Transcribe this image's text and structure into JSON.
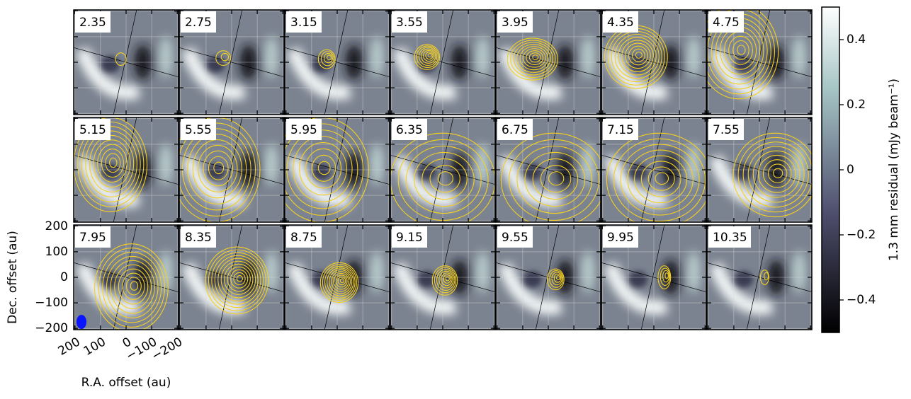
{
  "chart_data": {
    "type": "channel-map",
    "panels": [
      "2.35",
      "2.75",
      "3.15",
      "3.55",
      "3.95",
      "4.35",
      "4.75",
      "5.15",
      "5.55",
      "5.95",
      "6.35",
      "6.75",
      "7.15",
      "7.55",
      "7.95",
      "8.35",
      "8.75",
      "9.15",
      "9.55",
      "9.95",
      "10.35"
    ],
    "xlabel": "R.A. offset (au)",
    "ylabel": "Dec. offset (au)",
    "xlim": [
      205,
      -205
    ],
    "ylim": [
      -205,
      205
    ],
    "xticks": [
      200,
      100,
      0,
      {
        "value": -100,
        "label": "−100"
      },
      {
        "value": -200,
        "label": "−200"
      }
    ],
    "yticks": [
      200,
      100,
      0,
      {
        "value": -100,
        "label": "−100"
      },
      {
        "value": -200,
        "label": "−200"
      }
    ],
    "grid": true,
    "colorbar_label": "1.3 mm residual (mJy beam⁻¹)",
    "clim": [
      -0.5,
      0.5
    ],
    "cticks": [
      0.4,
      0.2,
      0,
      {
        "value": -0.2,
        "label": "−0.2"
      },
      {
        "value": -0.4,
        "label": "−0.4"
      }
    ],
    "contour_color": "#f5d020"
  }
}
